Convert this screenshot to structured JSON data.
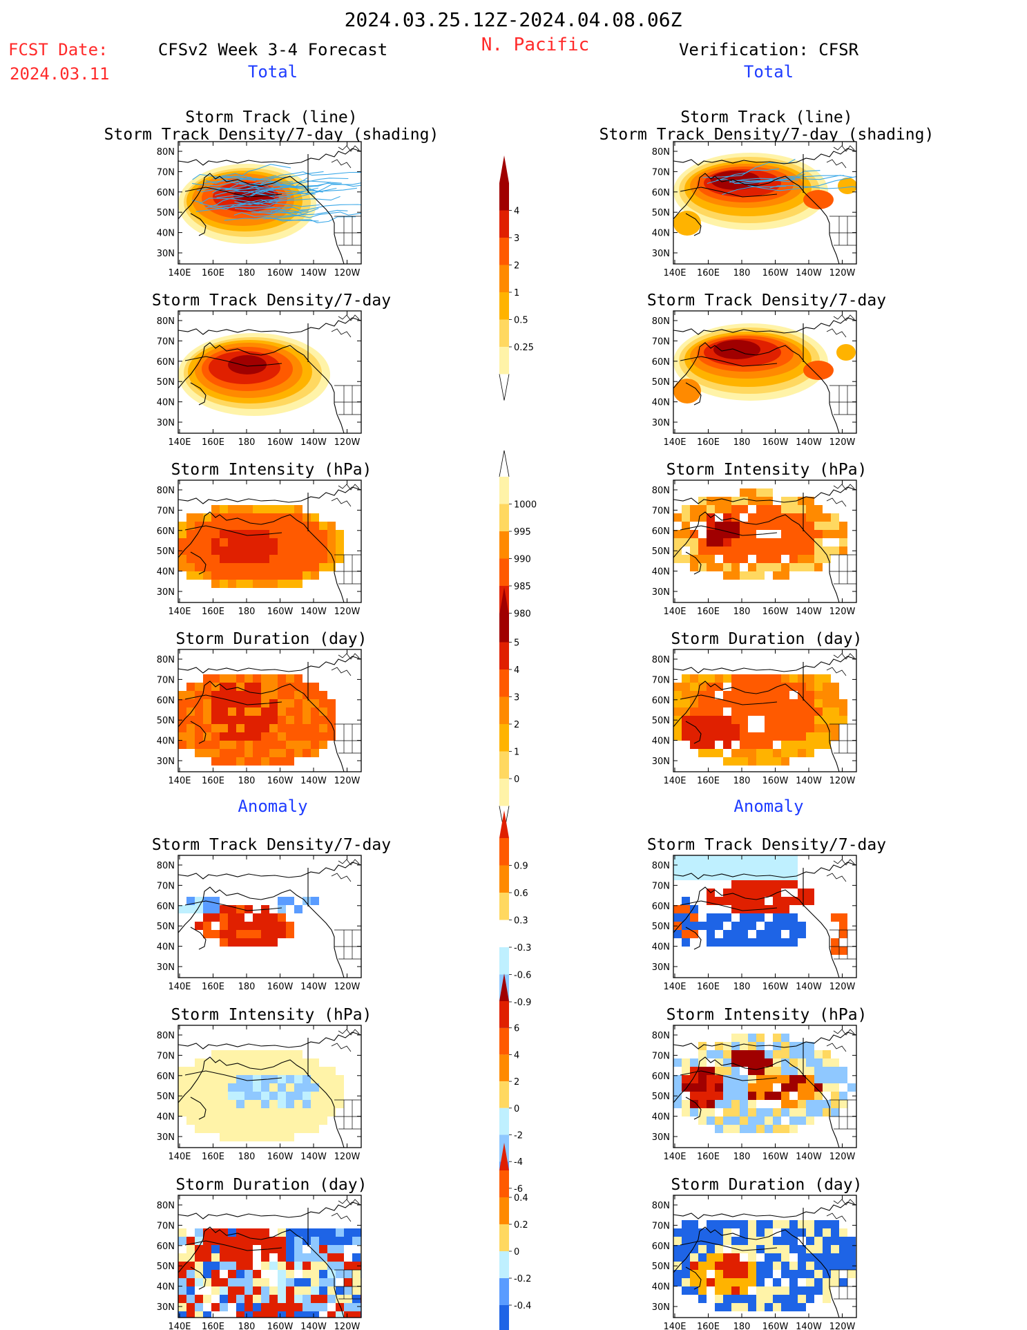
{
  "header": {
    "period": "2024.03.25.12Z-2024.04.08.06Z",
    "region": "N. Pacific",
    "fcst_label": "FCST Date:",
    "fcst_date": "2024.03.11",
    "forecast_title": "CFSv2 Week 3-4 Forecast",
    "verification_title": "Verification: CFSR"
  },
  "sections": {
    "total_label": "Total",
    "anomaly_label": "Anomaly"
  },
  "axes": {
    "lat_ticks": [
      "80N",
      "70N",
      "60N",
      "50N",
      "40N",
      "30N"
    ],
    "lon_ticks": [
      "140E",
      "160E",
      "180",
      "160W",
      "140W",
      "120W"
    ]
  },
  "panels": {
    "track_title_1": "Storm Track (line)",
    "track_title_2": "Storm Track Density/7-day (shading)",
    "density_title": "Storm Track Density/7-day",
    "intensity_title": "Storm Intensity (hPa)",
    "duration_title": "Storm Duration (day)"
  },
  "colorbars": {
    "density_total": [
      "4",
      "3",
      "2",
      "1",
      "0.5",
      "0.25"
    ],
    "intensity_total": [
      "1000",
      "995",
      "990",
      "985",
      "980"
    ],
    "duration_total": [
      "5",
      "4",
      "3",
      "2",
      "1",
      "0"
    ],
    "density_anom": [
      "0.9",
      "0.6",
      "0.3",
      "-0.3",
      "-0.6",
      "-0.9"
    ],
    "intensity_anom": [
      "6",
      "4",
      "2",
      "0",
      "-2",
      "-4",
      "-6"
    ],
    "duration_anom": [
      "0.4",
      "0.2",
      "0",
      "-0.2",
      "-0.4"
    ]
  },
  "colors": {
    "title_red": "#ff2a2a",
    "section_blue": "#1e3cff",
    "warm": [
      "#fff3a8",
      "#ffd860",
      "#ffb300",
      "#ff8a00",
      "#ff5a00",
      "#e02000",
      "#a00000"
    ],
    "cool": [
      "#bff0ff",
      "#8fc8ff",
      "#5a9cff",
      "#1e64e6"
    ],
    "track_line": "#3aa8e8"
  },
  "chart_data": {
    "type": "heatmap",
    "lon_range": [
      140,
      250
    ],
    "lat_range": [
      25,
      85
    ],
    "panels": [
      {
        "column": "forecast",
        "field": "storm track density",
        "mode": "total"
      },
      {
        "column": "forecast",
        "field": "storm intensity",
        "mode": "total"
      },
      {
        "column": "forecast",
        "field": "storm duration",
        "mode": "total"
      },
      {
        "column": "forecast",
        "field": "storm track density",
        "mode": "anomaly"
      },
      {
        "column": "forecast",
        "field": "storm intensity",
        "mode": "anomaly"
      },
      {
        "column": "forecast",
        "field": "storm duration",
        "mode": "anomaly"
      },
      {
        "column": "verification",
        "field": "storm track density",
        "mode": "total"
      },
      {
        "column": "verification",
        "field": "storm intensity",
        "mode": "total"
      },
      {
        "column": "verification",
        "field": "storm duration",
        "mode": "total"
      },
      {
        "column": "verification",
        "field": "storm track density",
        "mode": "anomaly"
      },
      {
        "column": "verification",
        "field": "storm intensity",
        "mode": "anomaly"
      },
      {
        "column": "verification",
        "field": "storm duration",
        "mode": "anomaly"
      }
    ]
  }
}
